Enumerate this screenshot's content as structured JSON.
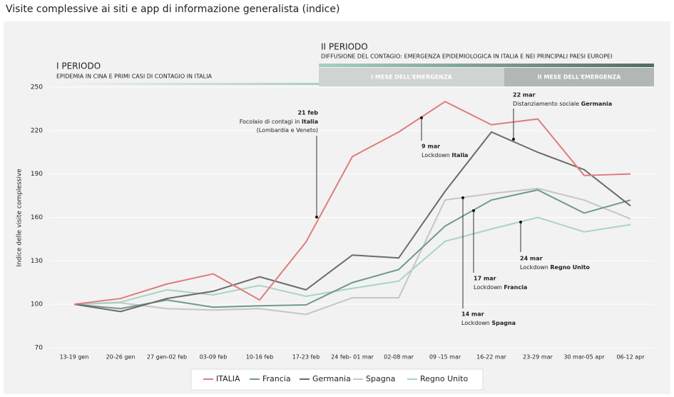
{
  "chart_data": {
    "type": "line",
    "title": "Visite complessive ai siti e app di informazione generalista (indice)",
    "y_label": "Indice delle visite complessive",
    "periods": [
      {
        "title": "I PERIODO",
        "subtitle": "EPIDEMIA IN CINA E PRIMI CASI DI CONTAGIO IN ITALIA"
      },
      {
        "title": "II PERIODO",
        "subtitle": "DIFFUSIONE DEL CONTAGIO: EMERGENZA EPIDEMIOLOGICA IN ITALIA E NEI PRINCIPALI PAESI EUROPEI"
      }
    ],
    "months": [
      "I MESE DELL'EMERGENZA",
      "II MESE DELL'EMERGENZA"
    ],
    "categories": [
      "13-19 gen",
      "20-26 gen",
      "27 gen-02 feb",
      "03-09 feb",
      "10-16 feb",
      "17-23 feb",
      "24 feb- 01 mar",
      "02-08 mar",
      "09 -15 mar",
      "16-22 mar",
      "23-29 mar",
      "30 mar-05 apr",
      "06-12 apr"
    ],
    "series": [
      {
        "name": "ITALIA",
        "color": "#e07c7c",
        "values": [
          100,
          104,
          114,
          121,
          103,
          143,
          202,
          219,
          240,
          224,
          228,
          189,
          190
        ]
      },
      {
        "name": "Francia",
        "color": "#6e9a8b",
        "values": [
          100,
          97,
          103,
          98,
          99,
          99.6,
          115,
          124,
          154,
          172,
          179,
          163,
          172
        ]
      },
      {
        "name": "Germania",
        "color": "#6b6b6b",
        "values": [
          100,
          95,
          104,
          109,
          119,
          110,
          134,
          132,
          178,
          219,
          205,
          193,
          168
        ]
      },
      {
        "name": "Spagna",
        "color": "#c6c6c6",
        "values": [
          100,
          101,
          97,
          96,
          97,
          93,
          104.5,
          104.5,
          172,
          176.5,
          180,
          172,
          159
        ]
      },
      {
        "name": "Regno Unito",
        "color": "#a9d3c6",
        "values": [
          100,
          101.5,
          110,
          106.5,
          113,
          105.5,
          111,
          116,
          143.5,
          152,
          160,
          150,
          155
        ]
      }
    ],
    "ylim": [
      70,
      250
    ],
    "yticks": [
      70,
      100,
      130,
      160,
      190,
      220,
      250
    ],
    "grid": true,
    "annotations": [
      {
        "date": "21 feb",
        "lines": [
          {
            "text": "Focolaio di contagi in ",
            "bold": "Italia"
          },
          {
            "text": "(Lombardia e Veneto)"
          }
        ]
      },
      {
        "date": "9 mar",
        "lines": [
          {
            "text": "Lockdown ",
            "bold": "Italia"
          }
        ]
      },
      {
        "date": "22 mar",
        "lines": [
          {
            "text": "Distanziamento sociale ",
            "bold": "Germania"
          }
        ]
      },
      {
        "date": "24 mar",
        "lines": [
          {
            "text": "Lockdown ",
            "bold": "Regno Unito"
          }
        ]
      },
      {
        "date": "17 mar",
        "lines": [
          {
            "text": "Lockdown ",
            "bold": "Francia"
          }
        ]
      },
      {
        "date": "14 mar",
        "lines": [
          {
            "text": "Lockdown ",
            "bold": "Spagna"
          }
        ]
      }
    ]
  }
}
